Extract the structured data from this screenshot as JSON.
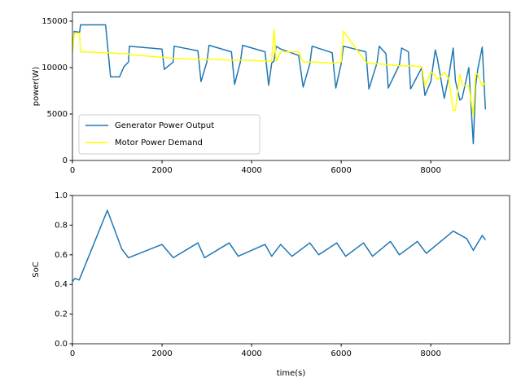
{
  "chart_data": [
    {
      "type": "line",
      "ylabel": "power(W)",
      "x": [
        0,
        40,
        160,
        180,
        740,
        850,
        1050,
        1150,
        1250,
        1270,
        2000,
        2050,
        2250,
        2270,
        2800,
        2870,
        3000,
        3050,
        3550,
        3620,
        3750,
        3800,
        4300,
        4380,
        4450,
        4500,
        4550,
        4650,
        5050,
        5150,
        5300,
        5350,
        5800,
        5880,
        6000,
        6050,
        6550,
        6620,
        6800,
        6850,
        7000,
        7050,
        7300,
        7350,
        7500,
        7550,
        7800,
        7870,
        8000,
        8100,
        8150,
        8300,
        8400,
        8500,
        8550,
        8650,
        8700,
        8850,
        8950,
        9000,
        9050,
        9150,
        9220
      ],
      "series": [
        {
          "name": "Generator Power Output",
          "color": "#1f77b4",
          "values": [
            11800,
            13900,
            13800,
            14600,
            14600,
            9000,
            9000,
            10100,
            10600,
            12300,
            12000,
            9800,
            10600,
            12300,
            11800,
            8500,
            10600,
            12400,
            11700,
            8200,
            10600,
            12400,
            11700,
            8100,
            10500,
            10700,
            12300,
            12000,
            11300,
            7900,
            10400,
            12300,
            11600,
            7800,
            10400,
            12300,
            11700,
            7700,
            10500,
            12300,
            11500,
            7800,
            10300,
            12100,
            11700,
            7700,
            10000,
            7000,
            8500,
            11900,
            10900,
            6700,
            9000,
            12100,
            8600,
            6500,
            6700,
            10000,
            1800,
            8000,
            9800,
            12200,
            5500
          ]
        },
        {
          "name": "Motor Power Demand",
          "color": "#ffff00",
          "values": [
            11700,
            13700,
            13700,
            11700,
            11600,
            11600,
            11500,
            11500,
            11500,
            11400,
            11100,
            11100,
            11000,
            11000,
            10900,
            10900,
            10900,
            10900,
            10800,
            10800,
            10800,
            10800,
            10700,
            10700,
            10700,
            14100,
            10700,
            11700,
            11700,
            10600,
            10600,
            10600,
            10500,
            10500,
            10600,
            13900,
            10600,
            10500,
            10400,
            10400,
            10300,
            10300,
            10200,
            10200,
            10200,
            10200,
            10100,
            8000,
            9500,
            9200,
            8700,
            9500,
            8800,
            5400,
            5400,
            9300,
            8100,
            8000,
            4900,
            9300,
            9300,
            8000,
            8400
          ]
        }
      ],
      "xlim": [
        0,
        9760
      ],
      "xticks": [
        0,
        2000,
        4000,
        6000,
        8000
      ],
      "ylim": [
        0,
        15960
      ],
      "yticks": [
        0,
        5000,
        10000,
        15000
      ],
      "legend": "lower left"
    },
    {
      "type": "line",
      "ylabel": "SoC",
      "xlabel": "time(s)",
      "x": [
        0,
        50,
        150,
        780,
        1100,
        1250,
        2000,
        2250,
        2800,
        2950,
        3500,
        3700,
        4300,
        4450,
        4650,
        4900,
        5300,
        5500,
        5900,
        6100,
        6500,
        6700,
        7100,
        7300,
        7700,
        7900,
        8300,
        8500,
        8800,
        8950,
        9150,
        9220
      ],
      "values": [
        0.42,
        0.44,
        0.43,
        0.9,
        0.64,
        0.58,
        0.67,
        0.58,
        0.68,
        0.58,
        0.68,
        0.59,
        0.67,
        0.59,
        0.67,
        0.59,
        0.68,
        0.6,
        0.68,
        0.59,
        0.68,
        0.59,
        0.69,
        0.6,
        0.69,
        0.61,
        0.71,
        0.76,
        0.71,
        0.63,
        0.73,
        0.7
      ],
      "color": "#1f77b4",
      "xlim": [
        0,
        9760
      ],
      "xticks": [
        0,
        2000,
        4000,
        6000,
        8000
      ],
      "ylim": [
        0,
        1
      ],
      "yticks": [
        {
          "value": 0,
          "label": "0.0"
        },
        {
          "value": 0.2,
          "label": "0.2"
        },
        {
          "value": 0.4,
          "label": "0.4"
        },
        {
          "value": 0.6,
          "label": "0.6"
        },
        {
          "value": 0.8,
          "label": "0.8"
        },
        {
          "value": 1,
          "label": "1.0"
        }
      ]
    }
  ]
}
